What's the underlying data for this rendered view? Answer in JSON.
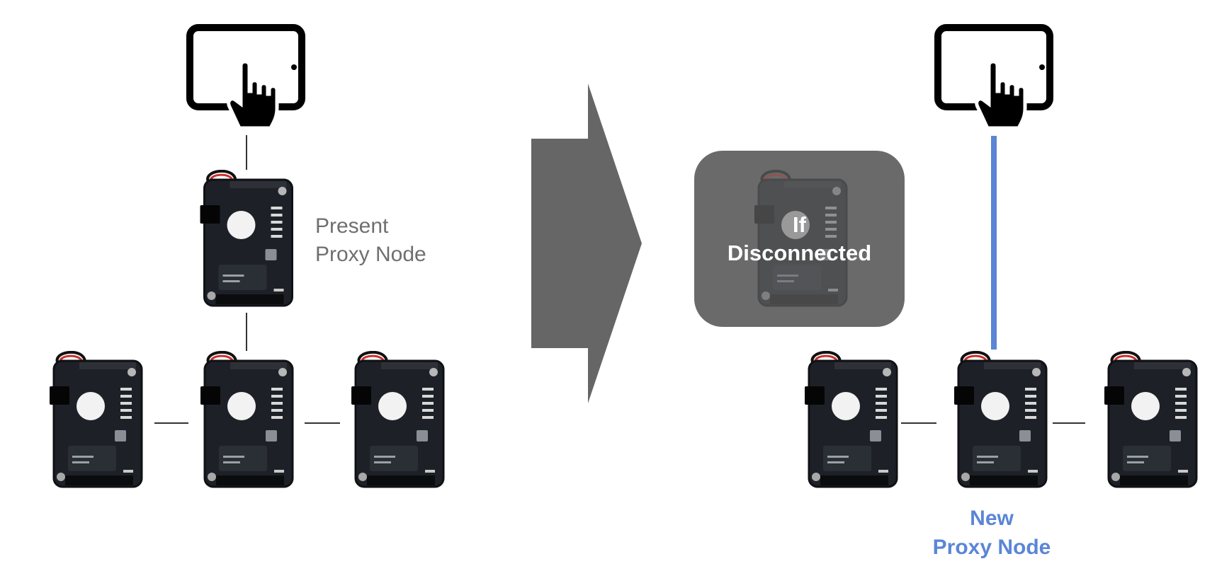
{
  "left_panel": {
    "device_icon": "tablet-touch-icon",
    "proxy_label_line1": "Present",
    "proxy_label_line2": "Proxy Node"
  },
  "transition": {
    "arrow_icon": "right-arrow-icon"
  },
  "right_panel": {
    "device_icon": "tablet-touch-icon",
    "disconnected_line1": "If",
    "disconnected_line2": "Disconnected",
    "new_proxy_line1": "New",
    "new_proxy_line2": "Proxy Node"
  },
  "colors": {
    "accent_blue": "#5b86d6",
    "label_gray": "#6f6f6f",
    "arrow_gray": "#666666",
    "overlay_gray": "#6a6a6a"
  }
}
